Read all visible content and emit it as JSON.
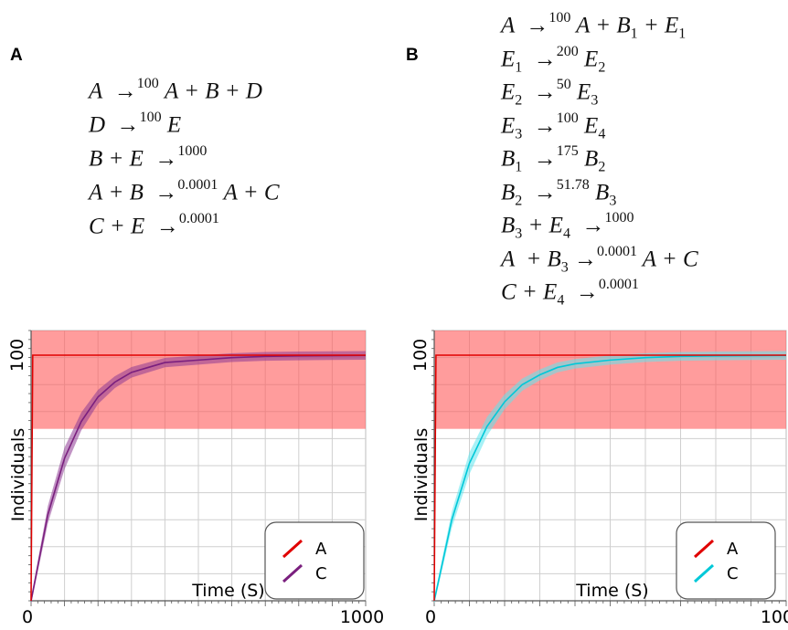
{
  "panel_a": {
    "letter": "A",
    "reactions": [
      {
        "lhs": "A",
        "rate": "100",
        "rhs": "A + B + D"
      },
      {
        "lhs": "D",
        "rate": "100",
        "rhs": "E"
      },
      {
        "lhs": "B + E",
        "rate": "1000",
        "rhs": ""
      },
      {
        "lhs": "A + B",
        "rate": "0.0001",
        "rhs": "A + C"
      },
      {
        "lhs": "C + E",
        "rate": "0.0001",
        "rhs": ""
      }
    ]
  },
  "panel_b": {
    "letter": "B",
    "reactions_html": [
      "A &nbsp;→<sup>100</sup> A + B<sub>1</sub> + E<sub>1</sub>",
      "E<sub>1</sub> &nbsp;→<sup>200</sup> E<sub>2</sub>",
      "E<sub>2</sub> &nbsp;→<sup>50</sup> E<sub>3</sub>",
      "E<sub>3</sub> &nbsp;→<sup>100</sup> E<sub>4</sub>",
      "B<sub>1</sub> &nbsp;→<sup>175</sup> B<sub>2</sub>",
      "B<sub>2</sub> &nbsp;→<sup>51.78</sup> B<sub>3</sub>",
      "B<sub>3</sub> + E<sub>4</sub> &nbsp;→<sup>1000</sup>",
      "A &nbsp;+ B<sub>3</sub> →<sup>0.0001</sup> A + C",
      "C + E<sub>4</sub> &nbsp;→<sup>0.0001</sup>"
    ]
  },
  "chart_data": [
    {
      "type": "line",
      "xlabel": "Time (S)",
      "ylabel": "Individuals",
      "xlim": [
        0,
        1000
      ],
      "x_tick_labels": [
        "0",
        "1000"
      ],
      "y_tick_labels": [
        "100"
      ],
      "legend": [
        "A",
        "C"
      ],
      "legend_position": "bottom-right",
      "band": {
        "from": 70,
        "to": 130
      },
      "series": [
        {
          "name": "A",
          "color": "#e00000",
          "x": [
            0,
            5,
            10,
            1000
          ],
          "y": [
            0,
            100,
            100,
            100
          ]
        },
        {
          "name": "C",
          "color": "#7a1f7e",
          "band_color": "#8e3b94",
          "x": [
            0,
            50,
            100,
            150,
            200,
            250,
            300,
            350,
            400,
            500,
            600,
            700,
            800,
            900,
            1000
          ],
          "y": [
            0,
            35,
            58,
            73,
            83,
            89,
            93,
            95,
            97,
            98,
            99,
            99.5,
            99.7,
            99.8,
            99.9
          ]
        }
      ]
    },
    {
      "type": "line",
      "xlabel": "Time (S)",
      "ylabel": "Individuals",
      "xlim": [
        0,
        1000
      ],
      "x_tick_labels": [
        "0",
        "1000"
      ],
      "y_tick_labels": [
        "100"
      ],
      "legend": [
        "A",
        "C"
      ],
      "legend_position": "bottom-right",
      "band": {
        "from": 70,
        "to": 130
      },
      "series": [
        {
          "name": "A",
          "color": "#e00000",
          "x": [
            0,
            5,
            10,
            1000
          ],
          "y": [
            0,
            100,
            100,
            100
          ]
        },
        {
          "name": "C",
          "color": "#00c8d8",
          "band_color": "#5fe6ee",
          "x": [
            0,
            50,
            100,
            150,
            200,
            250,
            300,
            350,
            400,
            500,
            600,
            700,
            800,
            900,
            1000
          ],
          "y": [
            0,
            33,
            56,
            71,
            81,
            88,
            92,
            95,
            96.5,
            98,
            99,
            99.5,
            99.7,
            99.8,
            99.9
          ]
        }
      ]
    }
  ]
}
